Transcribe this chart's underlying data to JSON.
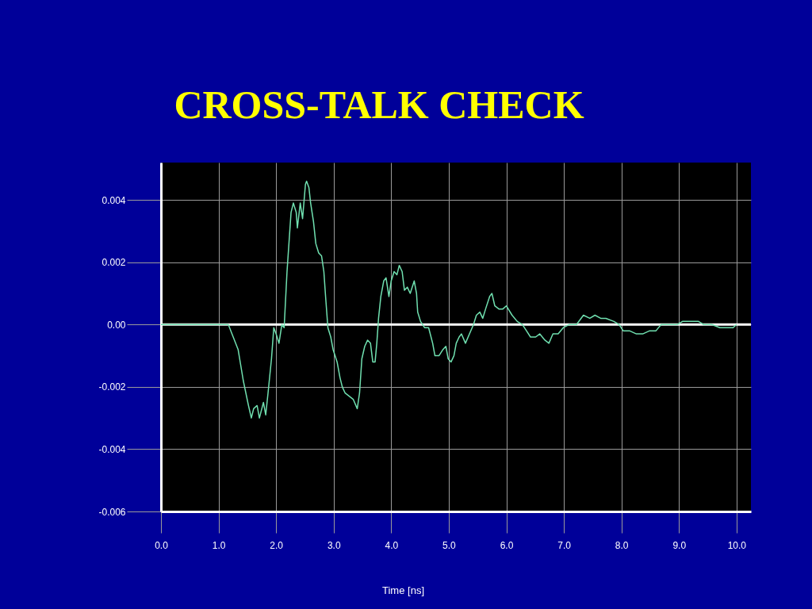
{
  "chart_data": {
    "type": "line",
    "title": "CROSS-TALK CHECK",
    "xlabel": "Time [ns]",
    "color": "#70e0b0",
    "grid": true,
    "xlim": [
      0,
      10.25
    ],
    "ylim": [
      -0.006,
      0.0052
    ],
    "xticks": [
      {
        "value": 0,
        "label": "0.0"
      },
      {
        "value": 1,
        "label": "1.0"
      },
      {
        "value": 2,
        "label": "2.0"
      },
      {
        "value": 3,
        "label": "3.0"
      },
      {
        "value": 4,
        "label": "4.0"
      },
      {
        "value": 5,
        "label": "5.0"
      },
      {
        "value": 6,
        "label": "6.0"
      },
      {
        "value": 7,
        "label": "7.0"
      },
      {
        "value": 8,
        "label": "8.0"
      },
      {
        "value": 9,
        "label": "9.0"
      },
      {
        "value": 10,
        "label": "10.0"
      }
    ],
    "yticks": [
      0.004,
      0.002,
      {
        "value": 0,
        "label": "0.00"
      },
      -0.002,
      -0.004,
      -0.006
    ],
    "ref_lines": [
      {
        "axis": "y",
        "value": 0,
        "color": "#ffffff"
      }
    ],
    "x": [
      0,
      0.5,
      1.0,
      1.17,
      1.34,
      1.43,
      1.52,
      1.57,
      1.61,
      1.67,
      1.71,
      1.78,
      1.82,
      1.86,
      1.92,
      1.96,
      2.0,
      2.05,
      2.1,
      2.14,
      2.19,
      2.26,
      2.3,
      2.35,
      2.37,
      2.42,
      2.46,
      2.51,
      2.53,
      2.57,
      2.6,
      2.65,
      2.69,
      2.74,
      2.79,
      2.83,
      2.86,
      2.9,
      2.95,
      2.99,
      3.06,
      3.11,
      3.15,
      3.2,
      3.27,
      3.34,
      3.41,
      3.45,
      3.49,
      3.54,
      3.59,
      3.64,
      3.68,
      3.72,
      3.75,
      3.78,
      3.82,
      3.87,
      3.91,
      3.96,
      4.0,
      4.05,
      4.1,
      4.14,
      4.19,
      4.23,
      4.28,
      4.33,
      4.4,
      4.44,
      4.46,
      4.51,
      4.58,
      4.65,
      4.72,
      4.76,
      4.83,
      4.9,
      4.95,
      4.99,
      5.04,
      5.09,
      5.13,
      5.18,
      5.22,
      5.29,
      5.36,
      5.43,
      5.48,
      5.54,
      5.59,
      5.64,
      5.71,
      5.75,
      5.8,
      5.87,
      5.94,
      6.0,
      6.1,
      6.19,
      6.28,
      6.35,
      6.42,
      6.51,
      6.58,
      6.67,
      6.74,
      6.81,
      6.9,
      6.99,
      7.09,
      7.22,
      7.34,
      7.45,
      7.54,
      7.64,
      7.73,
      7.87,
      7.96,
      8.03,
      8.14,
      8.26,
      8.37,
      8.49,
      8.6,
      8.69,
      8.83,
      8.97,
      9.06,
      9.2,
      9.34,
      9.43,
      9.57,
      9.71,
      9.84,
      9.94,
      10.0
    ],
    "values": [
      0,
      0,
      0,
      0,
      -0.0008,
      -0.0018,
      -0.0026,
      -0.003,
      -0.0027,
      -0.0026,
      -0.003,
      -0.0025,
      -0.0029,
      -0.0022,
      -0.0011,
      -0.0001,
      -0.0003,
      -0.0006,
      0,
      -0.0001,
      0.0017,
      0.0036,
      0.0039,
      0.0036,
      0.0031,
      0.0039,
      0.0034,
      0.0045,
      0.0046,
      0.0044,
      0.0039,
      0.0033,
      0.0026,
      0.0023,
      0.0022,
      0.0017,
      0.0009,
      -0.0001,
      -0.0004,
      -0.0008,
      -0.0012,
      -0.0017,
      -0.002,
      -0.0022,
      -0.0023,
      -0.0024,
      -0.0027,
      -0.0022,
      -0.0011,
      -0.0007,
      -0.0005,
      -0.0006,
      -0.0012,
      -0.0012,
      -0.0006,
      0.0002,
      0.0009,
      0.0014,
      0.0015,
      0.0009,
      0.0014,
      0.0017,
      0.0016,
      0.0019,
      0.0017,
      0.0011,
      0.0012,
      0.001,
      0.0014,
      0.001,
      0.0004,
      0.0001,
      -0.0001,
      -0.0001,
      -0.0006,
      -0.001,
      -0.001,
      -0.0008,
      -0.0007,
      -0.0011,
      -0.0012,
      -0.001,
      -0.0006,
      -0.0004,
      -0.0003,
      -0.0006,
      -0.0003,
      0,
      0.0003,
      0.0004,
      0.0002,
      0.0005,
      0.0009,
      0.001,
      0.0006,
      0.0005,
      0.0005,
      0.0006,
      0.0003,
      0.0001,
      0,
      -0.0002,
      -0.0004,
      -0.0004,
      -0.0003,
      -0.0005,
      -0.0006,
      -0.0003,
      -0.0003,
      -0.0001,
      0,
      0,
      0.0003,
      0.0002,
      0.0003,
      0.0002,
      0.0002,
      0.0001,
      0,
      -0.0002,
      -0.0002,
      -0.0003,
      -0.0003,
      -0.0002,
      -0.0002,
      0,
      0,
      0,
      0.0001,
      0.0001,
      0.0001,
      0,
      0,
      -0.0001,
      -0.0001,
      -0.0001,
      0
    ]
  }
}
